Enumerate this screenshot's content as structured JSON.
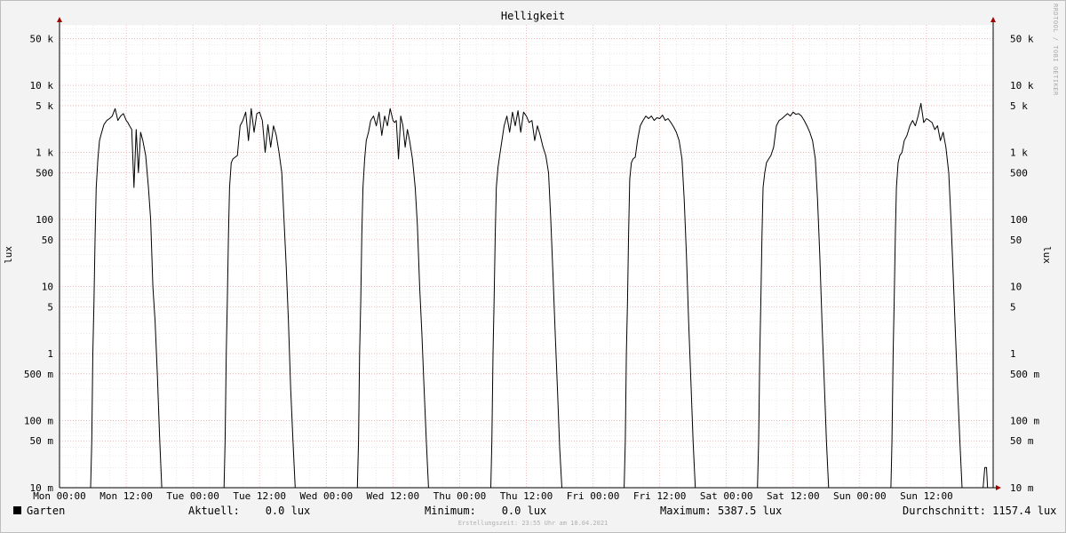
{
  "chart_data": {
    "type": "line",
    "title": "Helligkeit",
    "ylabel": "lux",
    "yscale": "log",
    "ylim": [
      0.01,
      80000
    ],
    "ytick_values": [
      0.01,
      0.05,
      0.1,
      0.5,
      1,
      5,
      10,
      50,
      100,
      500,
      1000,
      5000,
      10000,
      50000
    ],
    "ytick_labels": [
      "10 m",
      "50 m",
      "100 m",
      "500 m",
      "1",
      "5",
      "10",
      "50",
      "100",
      "500",
      "1 k",
      "5 k",
      "10 k",
      "50 k"
    ],
    "x_unit": "hours",
    "xlim": [
      0,
      168
    ],
    "xtick_values": [
      0,
      12,
      24,
      36,
      48,
      60,
      72,
      84,
      96,
      108,
      120,
      132,
      144,
      156
    ],
    "xtick_labels": [
      "Mon 00:00",
      "Mon 12:00",
      "Tue 00:00",
      "Tue 12:00",
      "Wed 00:00",
      "Wed 12:00",
      "Thu 00:00",
      "Thu 12:00",
      "Fri 00:00",
      "Fri 12:00",
      "Sat 00:00",
      "Sat 12:00",
      "Sun 00:00",
      "Sun 12:00"
    ],
    "grid": true,
    "series": [
      {
        "name": "Garten",
        "color": "#000000",
        "days": [
          {
            "x": [
              5.6,
              5.8,
              6.0,
              6.2,
              6.4,
              6.6,
              6.9,
              7.2,
              7.6,
              8.0,
              8.5,
              9.0,
              9.5,
              10.0,
              10.5,
              11.0,
              11.5,
              12.0,
              12.3,
              12.6,
              13.0,
              13.4,
              13.8,
              14.2,
              14.6,
              15.0,
              15.5,
              16.0,
              16.4,
              16.8,
              17.2,
              17.6,
              18.0,
              18.4,
              18.8,
              19.1,
              19.4,
              19.6,
              19.8,
              20.0,
              20.2
            ],
            "y": [
              0.01,
              0.05,
              1,
              6,
              50,
              300,
              800,
              1500,
              2000,
              2600,
              3000,
              3200,
              3500,
              4500,
              3000,
              3500,
              3800,
              3000,
              2800,
              2500,
              2200,
              300,
              2200,
              500,
              2000,
              1500,
              900,
              300,
              100,
              10,
              3,
              0.5,
              0.06,
              0.01,
              0.01,
              0.01,
              0.01,
              0.01,
              0.01,
              0.01,
              0.01
            ]
          },
          {
            "x": [
              29.6,
              29.8,
              30.0,
              30.2,
              30.4,
              30.6,
              30.9,
              31.2,
              31.6,
              32.0,
              32.5,
              33.0,
              33.5,
              34.0,
              34.5,
              35.0,
              35.5,
              36.0,
              36.5,
              37.0,
              37.5,
              38.0,
              38.5,
              39.0,
              39.5,
              40.0,
              40.4,
              40.8,
              41.2,
              41.6,
              42.0,
              42.4,
              42.8,
              43.2,
              43.6,
              44.0,
              44.2
            ],
            "y": [
              0.01,
              0.05,
              1,
              6,
              60,
              300,
              700,
              800,
              850,
              900,
              2500,
              3000,
              4000,
              1500,
              4500,
              2000,
              3800,
              4000,
              3000,
              1000,
              2600,
              1200,
              2500,
              1800,
              1000,
              500,
              100,
              20,
              3,
              0.3,
              0.05,
              0.01,
              0.01,
              0.01,
              0.01,
              0.01,
              0.01
            ]
          },
          {
            "x": [
              53.6,
              53.8,
              54.0,
              54.2,
              54.4,
              54.6,
              54.9,
              55.2,
              55.6,
              56.0,
              56.5,
              57.0,
              57.5,
              58.0,
              58.5,
              59.0,
              59.5,
              60.0,
              60.3,
              60.6,
              61.0,
              61.4,
              61.8,
              62.2,
              62.6,
              63.0,
              63.5,
              64.0,
              64.4,
              64.8,
              65.2,
              65.6,
              66.0,
              66.4,
              66.8,
              67.2,
              67.6,
              68.0
            ],
            "y": [
              0.01,
              0.05,
              1,
              6,
              60,
              300,
              800,
              1500,
              2000,
              3000,
              3500,
              2500,
              4000,
              1800,
              3500,
              2500,
              4500,
              3000,
              2800,
              3000,
              800,
              3500,
              2500,
              1200,
              2200,
              1500,
              800,
              300,
              80,
              10,
              2,
              0.3,
              0.05,
              0.01,
              0.01,
              0.01,
              0.01,
              0.01
            ]
          },
          {
            "x": [
              77.6,
              77.8,
              78.0,
              78.2,
              78.4,
              78.6,
              78.9,
              79.2,
              79.6,
              80.0,
              80.5,
              81.0,
              81.5,
              82.0,
              82.5,
              83.0,
              83.5,
              84.0,
              84.5,
              85.0,
              85.5,
              86.0,
              86.5,
              87.0,
              87.5,
              88.0,
              88.4,
              88.8,
              89.2,
              89.6,
              90.0,
              90.4,
              90.8,
              91.2,
              91.6,
              92.0
            ],
            "y": [
              0.01,
              0.05,
              1,
              6,
              60,
              300,
              600,
              900,
              1500,
              2500,
              3500,
              2000,
              4000,
              2500,
              4200,
              2000,
              4000,
              3500,
              2800,
              3000,
              1500,
              2500,
              1800,
              1200,
              900,
              500,
              100,
              15,
              2,
              0.3,
              0.04,
              0.01,
              0.01,
              0.01,
              0.01,
              0.01
            ]
          },
          {
            "x": [
              101.6,
              101.8,
              102.0,
              102.2,
              102.4,
              102.6,
              102.9,
              103.2,
              103.6,
              104.0,
              104.5,
              105.0,
              105.5,
              106.0,
              106.5,
              107.0,
              107.5,
              108.0,
              108.5,
              109.0,
              109.5,
              110.0,
              110.5,
              111.0,
              111.5,
              112.0,
              112.4,
              112.8,
              113.2,
              113.6,
              114.0,
              114.4,
              114.8,
              115.2,
              115.6,
              116.0
            ],
            "y": [
              0.01,
              0.05,
              1,
              6,
              60,
              400,
              700,
              800,
              850,
              1500,
              2500,
              3000,
              3500,
              3200,
              3500,
              3000,
              3300,
              3200,
              3600,
              3000,
              3200,
              2800,
              2400,
              2000,
              1500,
              800,
              200,
              30,
              3,
              0.4,
              0.05,
              0.01,
              0.01,
              0.01,
              0.01,
              0.01
            ]
          },
          {
            "x": [
              125.6,
              125.8,
              126.0,
              126.2,
              126.4,
              126.6,
              126.9,
              127.2,
              127.6,
              128.0,
              128.5,
              129.0,
              129.5,
              130.0,
              130.5,
              131.0,
              131.5,
              132.0,
              132.5,
              133.0,
              133.5,
              134.0,
              134.5,
              135.0,
              135.5,
              136.0,
              136.4,
              136.8,
              137.2,
              137.6,
              138.0,
              138.4,
              138.8,
              139.2,
              139.6,
              140.0
            ],
            "y": [
              0.01,
              0.05,
              1,
              6,
              60,
              300,
              500,
              700,
              800,
              900,
              1200,
              2500,
              3000,
              3200,
              3500,
              3800,
              3500,
              4000,
              3700,
              3800,
              3500,
              3000,
              2500,
              2000,
              1500,
              800,
              200,
              30,
              3,
              0.4,
              0.05,
              0.01,
              0.01,
              0.01,
              0.01,
              0.01
            ]
          },
          {
            "x": [
              149.6,
              149.8,
              150.0,
              150.2,
              150.4,
              150.6,
              150.9,
              151.2,
              151.6,
              152.0,
              152.5,
              153.0,
              153.5,
              154.0,
              154.5,
              155.0,
              155.5,
              156.0,
              156.5,
              157.0,
              157.5,
              158.0,
              158.5,
              159.0,
              159.5,
              160.0,
              160.4,
              160.8,
              161.2,
              161.6,
              162.0,
              162.4,
              162.8,
              163.2,
              163.6,
              164.0
            ],
            "y": [
              0.01,
              0.05,
              1,
              6,
              60,
              300,
              700,
              900,
              1000,
              1500,
              1800,
              2500,
              3000,
              2500,
              3500,
              5387.5,
              2800,
              3200,
              3000,
              2800,
              2200,
              2500,
              1500,
              2000,
              1200,
              500,
              100,
              15,
              2,
              0.3,
              0.05,
              0.01,
              0.01,
              0.01,
              0.01,
              0.01
            ]
          },
          {
            "x": [
              166.0,
              166.2,
              166.5,
              166.8,
              167.0,
              167.3,
              167.6,
              168.0
            ],
            "y": [
              0.01,
              0.01,
              0.02,
              0.02,
              0.01,
              0.01,
              0.01,
              0.01
            ]
          }
        ]
      }
    ]
  },
  "header": {
    "title": "Helligkeit",
    "side_credit": "RRDTOOL / TOBI OETIKER"
  },
  "axis": {
    "ylabel_left": "lux",
    "ylabel_right": "lux"
  },
  "legend": {
    "series_name": "Garten",
    "current": "Aktuell:    0.0 lux",
    "minimum": "Minimum:    0.0 lux",
    "maximum": "Maximum: 5387.5 lux",
    "average": "Durchschnitt: 1157.4 lux"
  },
  "footer": {
    "created": "Erstellungszeit: 23:55 Uhr am 18.04.2021"
  }
}
